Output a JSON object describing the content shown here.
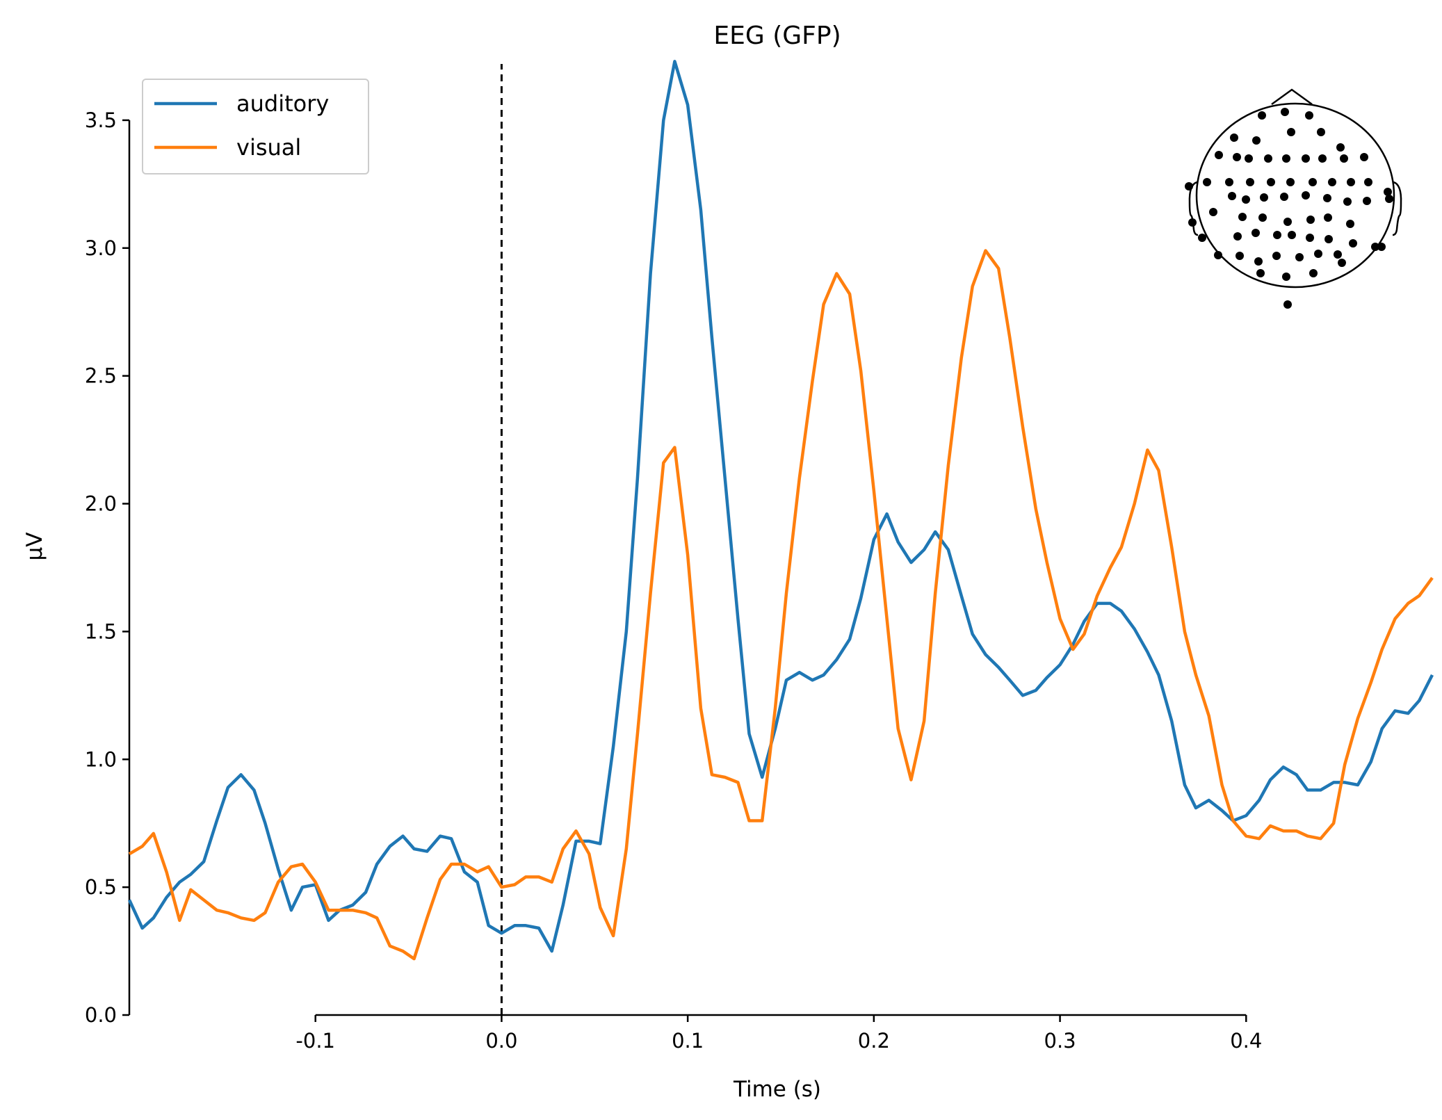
{
  "chart_data": {
    "type": "line",
    "title": "EEG (GFP)",
    "xlabel": "Time (s)",
    "ylabel": "µV",
    "xlim": [
      -0.2,
      0.5
    ],
    "ylim": [
      0,
      3.72
    ],
    "xticks": [
      -0.1,
      0.0,
      0.1,
      0.2,
      0.3,
      0.4
    ],
    "xtick_labels": [
      "-0.1",
      "0.0",
      "0.1",
      "0.2",
      "0.3",
      "0.4"
    ],
    "yticks": [
      0.0,
      0.5,
      1.0,
      1.5,
      2.0,
      2.5,
      3.0,
      3.5
    ],
    "ytick_labels": [
      "0.0",
      "0.5",
      "1.0",
      "1.5",
      "2.0",
      "2.5",
      "3.0",
      "3.5"
    ],
    "vline_x": 0.0,
    "legend_position": "top-left",
    "grid": false,
    "series": [
      {
        "name": "auditory",
        "color": "#1f77b4",
        "x": [
          -0.2,
          -0.193,
          -0.187,
          -0.18,
          -0.173,
          -0.167,
          -0.16,
          -0.153,
          -0.147,
          -0.14,
          -0.133,
          -0.127,
          -0.12,
          -0.113,
          -0.107,
          -0.1,
          -0.093,
          -0.087,
          -0.08,
          -0.073,
          -0.067,
          -0.06,
          -0.053,
          -0.047,
          -0.04,
          -0.033,
          -0.027,
          -0.02,
          -0.013,
          -0.007,
          0.0,
          0.007,
          0.013,
          0.02,
          0.027,
          0.033,
          0.04,
          0.047,
          0.053,
          0.06,
          0.067,
          0.073,
          0.08,
          0.087,
          0.093,
          0.1,
          0.107,
          0.113,
          0.12,
          0.127,
          0.133,
          0.14,
          0.147,
          0.153,
          0.16,
          0.167,
          0.173,
          0.18,
          0.187,
          0.193,
          0.2,
          0.207,
          0.213,
          0.22,
          0.227,
          0.233,
          0.24,
          0.247,
          0.253,
          0.26,
          0.267,
          0.273,
          0.28,
          0.287,
          0.293,
          0.3,
          0.307,
          0.313,
          0.32,
          0.327,
          0.333,
          0.34,
          0.347,
          0.353,
          0.36,
          0.367,
          0.373,
          0.38,
          0.387,
          0.393,
          0.4,
          0.407,
          0.413,
          0.42,
          0.427,
          0.433,
          0.44,
          0.447,
          0.453,
          0.46,
          0.467,
          0.473,
          0.48,
          0.487,
          0.493,
          0.5
        ],
        "y": [
          0.45,
          0.34,
          0.38,
          0.46,
          0.52,
          0.55,
          0.6,
          0.76,
          0.89,
          0.94,
          0.88,
          0.75,
          0.57,
          0.41,
          0.5,
          0.51,
          0.37,
          0.41,
          0.43,
          0.48,
          0.59,
          0.66,
          0.7,
          0.65,
          0.64,
          0.7,
          0.69,
          0.56,
          0.52,
          0.35,
          0.32,
          0.35,
          0.35,
          0.34,
          0.25,
          0.43,
          0.68,
          0.68,
          0.67,
          1.05,
          1.5,
          2.1,
          2.9,
          3.5,
          3.73,
          3.56,
          3.15,
          2.65,
          2.1,
          1.55,
          1.1,
          0.93,
          1.12,
          1.31,
          1.34,
          1.31,
          1.33,
          1.39,
          1.47,
          1.63,
          1.86,
          1.96,
          1.85,
          1.77,
          1.82,
          1.89,
          1.82,
          1.64,
          1.49,
          1.41,
          1.36,
          1.31,
          1.25,
          1.27,
          1.32,
          1.37,
          1.45,
          1.54,
          1.61,
          1.61,
          1.58,
          1.51,
          1.42,
          1.33,
          1.15,
          0.9,
          0.81,
          0.84,
          0.8,
          0.76,
          0.78,
          0.84,
          0.92,
          0.97,
          0.94,
          0.88,
          0.88,
          0.91,
          0.91,
          0.9,
          0.99,
          1.12,
          1.19,
          1.18,
          1.23,
          1.33
        ]
      },
      {
        "name": "visual",
        "color": "#ff7f0e",
        "x": [
          -0.2,
          -0.193,
          -0.187,
          -0.18,
          -0.173,
          -0.167,
          -0.16,
          -0.153,
          -0.147,
          -0.14,
          -0.133,
          -0.127,
          -0.12,
          -0.113,
          -0.107,
          -0.1,
          -0.093,
          -0.087,
          -0.08,
          -0.073,
          -0.067,
          -0.06,
          -0.053,
          -0.047,
          -0.04,
          -0.033,
          -0.027,
          -0.02,
          -0.013,
          -0.007,
          0.0,
          0.007,
          0.013,
          0.02,
          0.027,
          0.033,
          0.04,
          0.047,
          0.053,
          0.06,
          0.067,
          0.073,
          0.08,
          0.087,
          0.093,
          0.1,
          0.107,
          0.113,
          0.12,
          0.127,
          0.133,
          0.14,
          0.147,
          0.153,
          0.16,
          0.167,
          0.173,
          0.18,
          0.187,
          0.193,
          0.2,
          0.207,
          0.213,
          0.22,
          0.227,
          0.233,
          0.24,
          0.247,
          0.253,
          0.26,
          0.267,
          0.273,
          0.28,
          0.287,
          0.293,
          0.3,
          0.307,
          0.313,
          0.32,
          0.327,
          0.333,
          0.34,
          0.347,
          0.353,
          0.36,
          0.367,
          0.373,
          0.38,
          0.387,
          0.393,
          0.4,
          0.407,
          0.413,
          0.42,
          0.427,
          0.433,
          0.44,
          0.447,
          0.453,
          0.46,
          0.467,
          0.473,
          0.48,
          0.487,
          0.493,
          0.5
        ],
        "y": [
          0.63,
          0.66,
          0.71,
          0.56,
          0.37,
          0.49,
          0.45,
          0.41,
          0.4,
          0.38,
          0.37,
          0.4,
          0.52,
          0.58,
          0.59,
          0.52,
          0.41,
          0.41,
          0.41,
          0.4,
          0.38,
          0.27,
          0.25,
          0.22,
          0.38,
          0.53,
          0.59,
          0.59,
          0.56,
          0.58,
          0.5,
          0.51,
          0.54,
          0.54,
          0.52,
          0.65,
          0.72,
          0.63,
          0.42,
          0.31,
          0.65,
          1.1,
          1.65,
          2.16,
          2.22,
          1.8,
          1.2,
          0.94,
          0.93,
          0.91,
          0.76,
          0.76,
          1.2,
          1.65,
          2.1,
          2.48,
          2.78,
          2.9,
          2.82,
          2.52,
          2.05,
          1.55,
          1.12,
          0.92,
          1.15,
          1.65,
          2.15,
          2.57,
          2.85,
          2.99,
          2.92,
          2.65,
          2.3,
          1.98,
          1.77,
          1.55,
          1.43,
          1.49,
          1.64,
          1.75,
          1.83,
          2.0,
          2.21,
          2.13,
          1.83,
          1.5,
          1.33,
          1.17,
          0.9,
          0.76,
          0.7,
          0.69,
          0.74,
          0.72,
          0.72,
          0.7,
          0.69,
          0.75,
          0.98,
          1.16,
          1.3,
          1.43,
          1.55,
          1.61,
          1.64,
          1.71
        ]
      }
    ]
  },
  "sensor_inset": {
    "icon": "eeg-sensor-head-icon"
  }
}
